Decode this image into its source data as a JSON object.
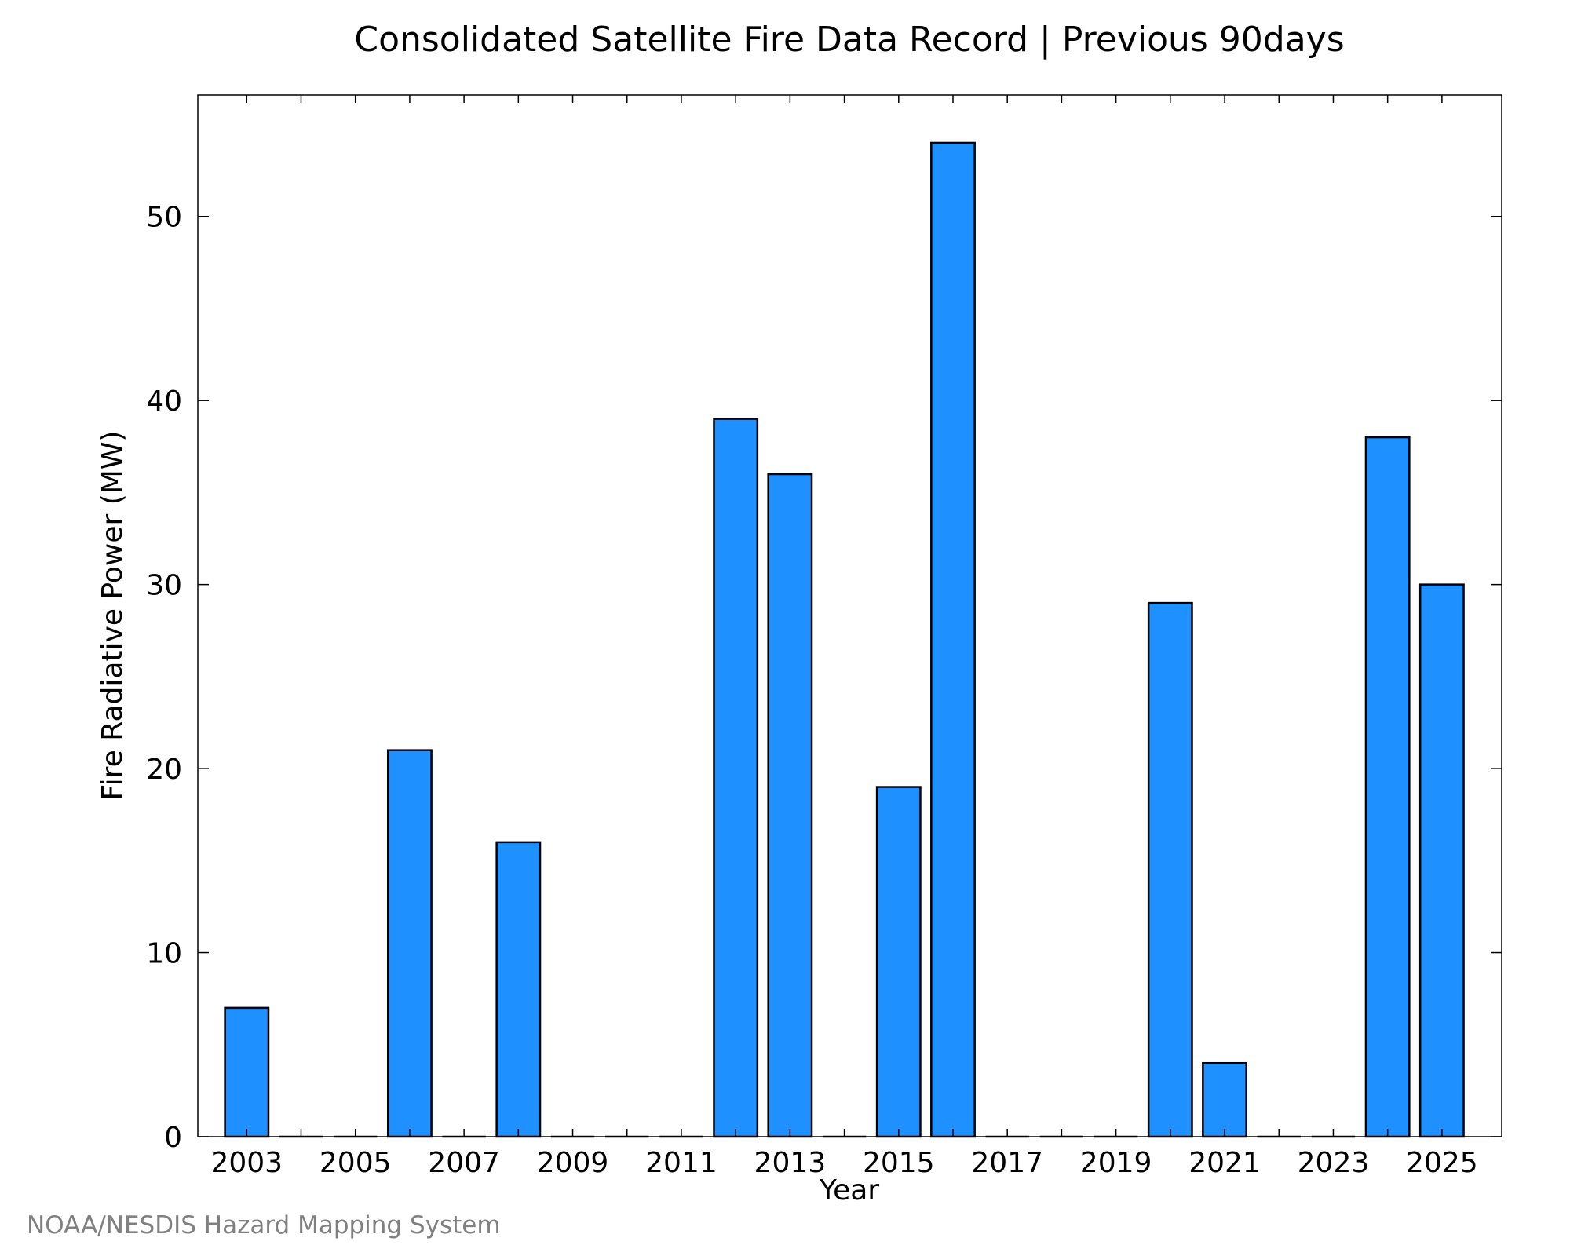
{
  "chart_data": {
    "type": "bar",
    "title": "Consolidated Satellite Fire Data Record | Previous 90days",
    "xlabel": "Year",
    "ylabel": "Fire Radiative Power (MW)",
    "categories": [
      "2003",
      "2004",
      "2005",
      "2006",
      "2007",
      "2008",
      "2009",
      "2010",
      "2011",
      "2012",
      "2013",
      "2014",
      "2015",
      "2016",
      "2017",
      "2018",
      "2019",
      "2020",
      "2021",
      "2022",
      "2023",
      "2024",
      "2025"
    ],
    "values": [
      7,
      0,
      0,
      21,
      0,
      16,
      0,
      0,
      0,
      39,
      36,
      0,
      19,
      54,
      0,
      0,
      0,
      29,
      4,
      0,
      0,
      38,
      30
    ],
    "ylim": [
      0,
      56.6
    ],
    "yticks": [
      0,
      10,
      20,
      30,
      40,
      50
    ],
    "xtick_labels": [
      "2003",
      "2005",
      "2007",
      "2009",
      "2011",
      "2013",
      "2015",
      "2017",
      "2019",
      "2021",
      "2023",
      "2025"
    ],
    "bar_color": "#1E90FF",
    "grid": false
  },
  "credit": "NOAA/NESDIS Hazard Mapping System"
}
